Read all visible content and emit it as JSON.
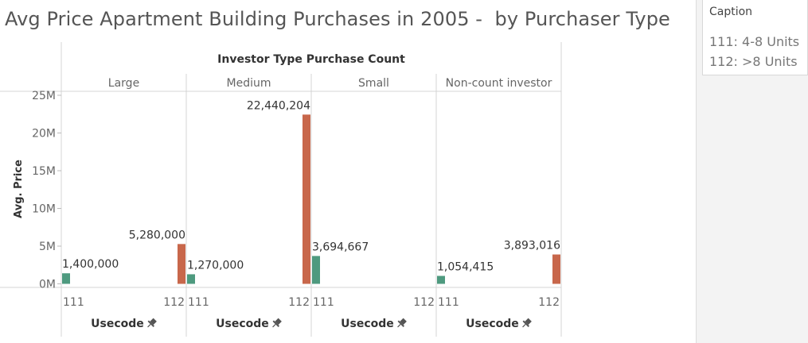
{
  "title": "Avg Price Apartment Building Purchases in 2005 -  by Purchaser Type",
  "caption": {
    "title": "Caption",
    "lines": [
      "111: 4-8 Units",
      "112: >8 Units"
    ]
  },
  "chart_data": {
    "type": "bar",
    "title": "Avg Price Apartment Building Purchases in 2005 -  by Purchaser Type",
    "column_header": "Investor Type Purchase Count",
    "panels": [
      "Large",
      "Medium",
      "Small",
      "Non-count investor"
    ],
    "categories": [
      "111",
      "112"
    ],
    "xlabel": "Usecode",
    "ylabel": "Avg. Price",
    "ylim": [
      0,
      25000000
    ],
    "yticks": [
      0,
      5000000,
      10000000,
      15000000,
      20000000,
      25000000
    ],
    "ytick_labels": [
      "0M",
      "5M",
      "10M",
      "15M",
      "20M",
      "25M"
    ],
    "colors": {
      "111": "#4e9a7f",
      "112": "#c8674b"
    },
    "data": [
      {
        "panel": "Large",
        "values": [
          1400000,
          5280000
        ],
        "labels": [
          "1,400,000",
          "5,280,000"
        ]
      },
      {
        "panel": "Medium",
        "values": [
          1270000,
          22440204
        ],
        "labels": [
          "1,270,000",
          "22,440,204"
        ]
      },
      {
        "panel": "Small",
        "values": [
          3694667,
          null
        ],
        "labels": [
          "3,694,667",
          ""
        ]
      },
      {
        "panel": "Non-count investor",
        "values": [
          1054415,
          3893016
        ],
        "labels": [
          "1,054,415",
          "3,893,016"
        ]
      }
    ],
    "grid": false,
    "legend": "none"
  }
}
